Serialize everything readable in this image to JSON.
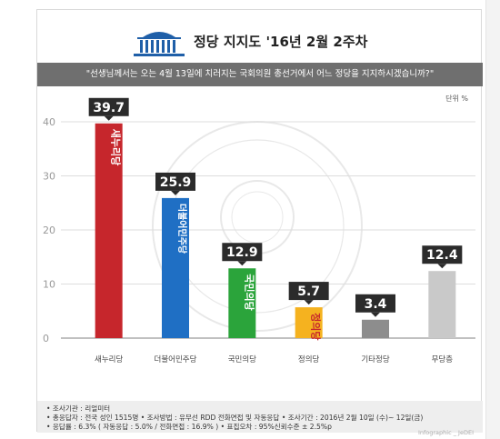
{
  "header": {
    "title": "정당 지지도 '16년 2월 2주차",
    "question": "\"선생님께서는 오는 4월 13일에 치러지는 국회의원 총선거에서 어느 정당을 지지하시겠습니까?\"",
    "unit": "단위 %"
  },
  "colors": {
    "saenuri": "#c6262c",
    "minjoo": "#1f6fc4",
    "gukmin": "#2ba43b",
    "jeongui": "#f5b21f",
    "gita": "#8d8d8d",
    "mudang": "#c9c9c9",
    "label_bg": "#2b2b2b"
  },
  "chart_data": {
    "type": "bar",
    "title": "정당 지지도 '16년 2월 2주차",
    "categories": [
      "새누리당",
      "더불어민주당",
      "국민의당",
      "정의당",
      "기타정당",
      "무당층"
    ],
    "values": [
      39.7,
      25.9,
      12.9,
      5.7,
      3.4,
      12.4
    ],
    "value_labels": [
      "39.7",
      "25.9",
      "12.9",
      "5.7",
      "3.4",
      "12.4"
    ],
    "yticks": [
      "0",
      "10",
      "20",
      "30",
      "40"
    ],
    "ylim": [
      0,
      40
    ],
    "grid": true,
    "unit": "단위 %",
    "bar_inner_text": [
      "새누리당",
      "더불어민주당",
      "국민의당",
      "정의당",
      "",
      ""
    ]
  },
  "footer": {
    "line1": "• 조사기관 : 리얼미터",
    "line2": "• 총응답자 : 전국 성인 1515명  • 조사방법 : 유무선 RDD 전화면접 및 자동응답  • 조사기간 : 2016년 2월 10일 (수)~ 12일(금)",
    "line3": "• 응답률 : 6.3% ( 자동응답 : 5.0% / 전화면접 : 16.9% )   • 표집오차 : 95%신뢰수준 ± 2.5%p",
    "credit": "Infographic _ JeDEI"
  }
}
